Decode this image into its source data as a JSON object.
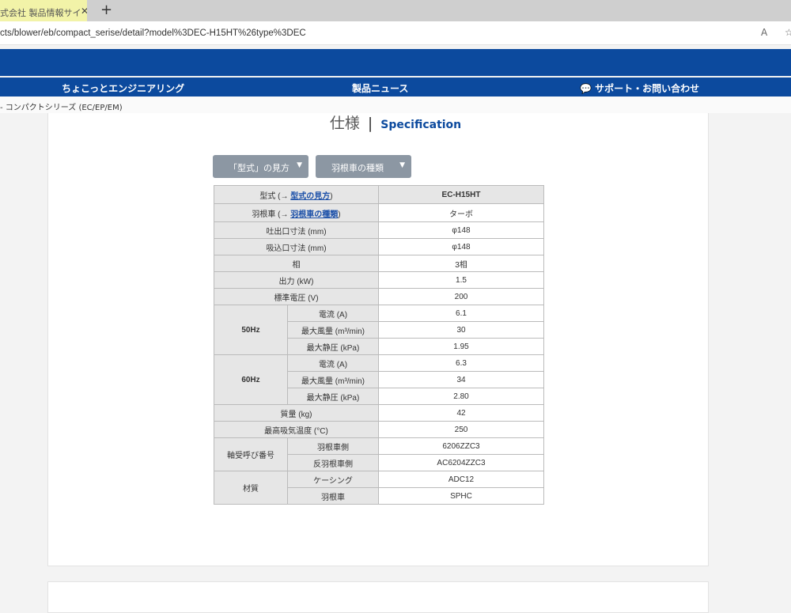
{
  "browser": {
    "tab_title": "式会社 製品情報サイ",
    "url": "cts/blower/eb/compact_serise/detail?model%3DEC-H15HT%26type%3DEC",
    "read_aloud": "A",
    "favorite": "☆"
  },
  "nav": {
    "items": [
      "ちょこっとエンジニアリング",
      "製品ニュース",
      "サポート・お問い合わせ"
    ]
  },
  "breadcrumb": "- コンパクトシリーズ (EC/EP/EM)",
  "heading": {
    "jp": "仕様",
    "sep": "|",
    "en": "Specification"
  },
  "buttons": [
    "「型式」の見方",
    "羽根車の種類"
  ],
  "spec": {
    "model_label": "型式 (→ ",
    "model_link": "型式の見方",
    "close": ")",
    "model": "EC-H15HT",
    "impeller_label": "羽根車 (→ ",
    "impeller_link": "羽根車の種類",
    "impeller": "ターボ",
    "rows1": [
      [
        "吐出口寸法 (mm)",
        "φ148"
      ],
      [
        "吸込口寸法 (mm)",
        "φ148"
      ],
      [
        "相",
        "3相"
      ],
      [
        "出力 (kW)",
        "1.5"
      ],
      [
        "標準電圧 (V)",
        "200"
      ]
    ],
    "hz50": {
      "label": "50Hz",
      "rows": [
        [
          "電流 (A)",
          "6.1"
        ],
        [
          "最大風量 (m³/min)",
          "30"
        ],
        [
          "最大静圧 (kPa)",
          "1.95"
        ]
      ]
    },
    "hz60": {
      "label": "60Hz",
      "rows": [
        [
          "電流 (A)",
          "6.3"
        ],
        [
          "最大風量 (m³/min)",
          "34"
        ],
        [
          "最大静圧 (kPa)",
          "2.80"
        ]
      ]
    },
    "rows2": [
      [
        "質量 (kg)",
        "42"
      ],
      [
        "最高吸気温度 (°C)",
        "250"
      ]
    ],
    "bearing": {
      "label": "軸受呼び番号",
      "rows": [
        [
          "羽根車側",
          "6206ZZC3"
        ],
        [
          "反羽根車側",
          "AC6204ZZC3"
        ]
      ]
    },
    "material": {
      "label": "材質",
      "rows": [
        [
          "ケーシング",
          "ADC12"
        ],
        [
          "羽根車",
          "SPHC"
        ]
      ]
    }
  }
}
